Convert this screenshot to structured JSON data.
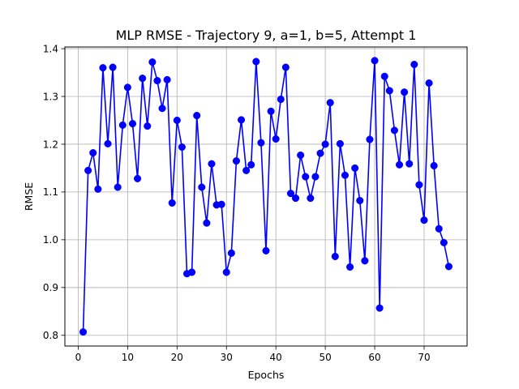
{
  "chart_data": {
    "type": "line",
    "title": "MLP RMSE - Trajectory 9, a=1, b=5, Attempt 1",
    "xlabel": "Epochs",
    "ylabel": "RMSE",
    "xlim": [
      -2.7,
      78.7
    ],
    "ylim": [
      0.7775,
      1.4035
    ],
    "xticks": [
      0,
      10,
      20,
      30,
      40,
      50,
      60,
      70
    ],
    "yticks": [
      0.8,
      0.9,
      1.0,
      1.1,
      1.2,
      1.3,
      1.4
    ],
    "ytick_labels": [
      "0.8",
      "0.9",
      "1.0",
      "1.1",
      "1.2",
      "1.3",
      "1.4"
    ],
    "grid": true,
    "color": "#0000ff",
    "marker": "circle",
    "x": [
      1,
      2,
      3,
      4,
      5,
      6,
      7,
      8,
      9,
      10,
      11,
      12,
      13,
      14,
      15,
      16,
      17,
      18,
      19,
      20,
      21,
      22,
      23,
      24,
      25,
      26,
      27,
      28,
      29,
      30,
      31,
      32,
      33,
      34,
      35,
      36,
      37,
      38,
      39,
      40,
      41,
      42,
      43,
      44,
      45,
      46,
      47,
      48,
      49,
      50,
      51,
      52,
      53,
      54,
      55,
      56,
      57,
      58,
      59,
      60,
      61,
      62,
      63,
      64,
      65,
      66,
      67,
      68,
      69,
      70,
      71,
      72,
      73,
      74,
      75
    ],
    "y": [
      0.807,
      1.145,
      1.182,
      1.106,
      1.36,
      1.201,
      1.361,
      1.11,
      1.24,
      1.319,
      1.243,
      1.128,
      1.338,
      1.238,
      1.372,
      1.333,
      1.275,
      1.335,
      1.077,
      1.25,
      1.194,
      0.929,
      0.932,
      1.26,
      1.11,
      1.035,
      1.159,
      1.073,
      1.074,
      0.932,
      0.972,
      1.165,
      1.251,
      1.145,
      1.157,
      1.373,
      1.203,
      0.977,
      1.269,
      1.211,
      1.294,
      1.361,
      1.097,
      1.087,
      1.177,
      1.132,
      1.087,
      1.132,
      1.181,
      1.2,
      1.287,
      0.965,
      1.201,
      1.135,
      0.943,
      1.15,
      1.082,
      0.956,
      1.21,
      1.375,
      0.857,
      1.342,
      1.312,
      1.229,
      1.157,
      1.309,
      1.159,
      1.367,
      1.115,
      1.041,
      1.328,
      1.155,
      1.023,
      0.994,
      0.944
    ]
  }
}
